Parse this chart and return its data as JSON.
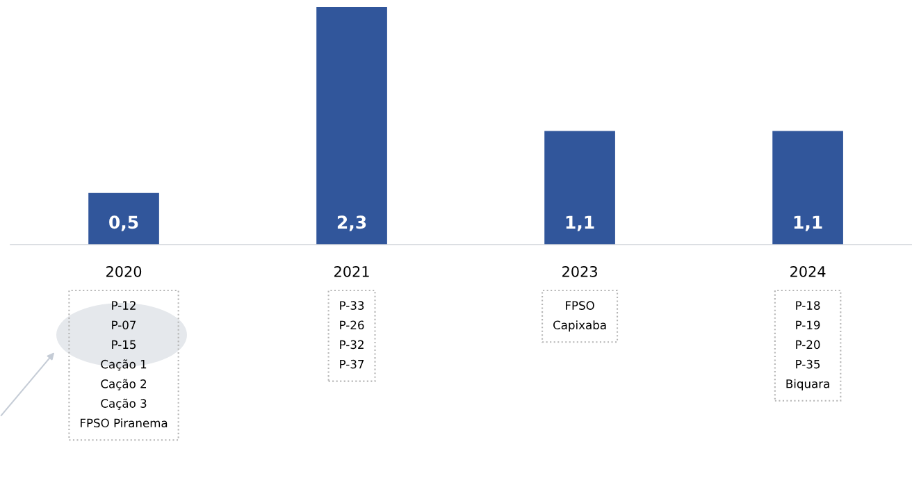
{
  "chart_data": {
    "type": "bar",
    "categories": [
      "2020",
      "2021",
      "2023",
      "2024"
    ],
    "values": [
      0.5,
      2.3,
      1.1,
      1.1
    ],
    "value_labels": [
      "0,5",
      "2,3",
      "1,1",
      "1,1"
    ],
    "color": "#31569b",
    "grid": false,
    "annotations": [
      "P-12\nP-07\nP-15\nCação 1\nCação 2\nCação 3\nFPSO Piranema",
      "P-33\nP-26\nP-32\nP-37",
      "FPSO\nCapixaba",
      "P-18\nP-19\nP-20\nP-35\nBiquara"
    ]
  }
}
